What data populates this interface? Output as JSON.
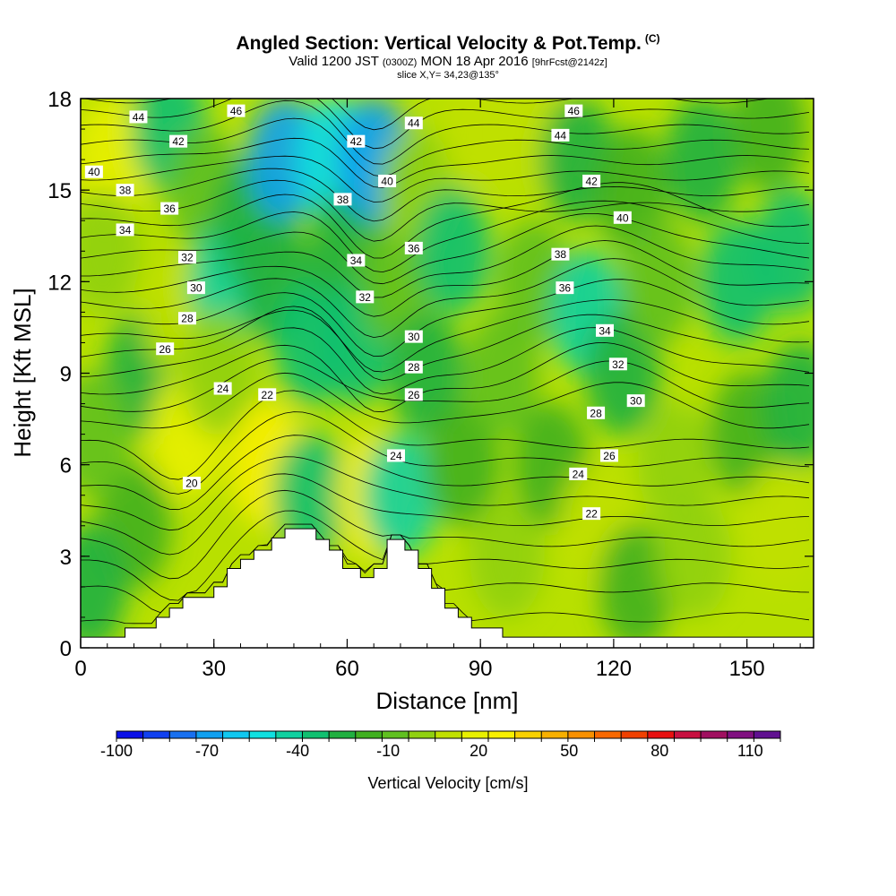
{
  "title": {
    "main": "Angled Section: Vertical Velocity & Pot.Temp.",
    "main_suffix": "(C)",
    "valid_a": "Valid 1200 JST",
    "valid_b": "(0300Z)",
    "valid_c": "MON 18 Apr 2016",
    "valid_d": "[9hrFcst@2142z]",
    "slice": "slice X,Y= 34,23@135°"
  },
  "chart_data": {
    "type": "heatmap",
    "xlabel": "Distance [nm]",
    "ylabel": "Height [Kft MSL]",
    "xlim": [
      0,
      165
    ],
    "ylim": [
      0,
      18
    ],
    "x_ticks": [
      "0",
      "30",
      "60",
      "90",
      "120",
      "150"
    ],
    "y_ticks": [
      "0",
      "3",
      "6",
      "9",
      "12",
      "15",
      "18"
    ],
    "colorbar": {
      "label": "Vertical Velocity [cm/s]",
      "tick_labels": [
        "-100",
        "-70",
        "-40",
        "-10",
        "20",
        "50",
        "80",
        "110"
      ],
      "min": -100,
      "max": 120,
      "step": 10,
      "colors": [
        "#0a10e8",
        "#1040f0",
        "#1870f0",
        "#10a0f0",
        "#10c8f0",
        "#10e0e0",
        "#10d0a0",
        "#10c070",
        "#20b040",
        "#40b020",
        "#60c020",
        "#90d010",
        "#c0e000",
        "#e8f000",
        "#f8f000",
        "#f8d000",
        "#f8b000",
        "#f89000",
        "#f86800",
        "#f04000",
        "#e81010",
        "#c81040",
        "#a01060",
        "#801080",
        "#601090"
      ]
    },
    "terrain": [
      [
        0,
        0.35
      ],
      [
        10,
        0.35
      ],
      [
        10,
        0.65
      ],
      [
        17,
        0.65
      ],
      [
        17,
        1
      ],
      [
        20,
        1
      ],
      [
        20,
        1.3
      ],
      [
        23,
        1.3
      ],
      [
        23,
        1.65
      ],
      [
        30,
        1.65
      ],
      [
        30,
        2
      ],
      [
        33,
        2
      ],
      [
        33,
        2.6
      ],
      [
        36,
        2.6
      ],
      [
        36,
        2.9
      ],
      [
        39,
        2.9
      ],
      [
        39,
        3.2
      ],
      [
        43,
        3.2
      ],
      [
        43,
        3.6
      ],
      [
        46,
        3.6
      ],
      [
        46,
        3.9
      ],
      [
        53,
        3.9
      ],
      [
        53,
        3.55
      ],
      [
        56,
        3.55
      ],
      [
        56,
        3.2
      ],
      [
        59,
        3.2
      ],
      [
        59,
        2.6
      ],
      [
        63,
        2.6
      ],
      [
        63,
        2.3
      ],
      [
        66,
        2.3
      ],
      [
        66,
        2.6
      ],
      [
        69,
        2.6
      ],
      [
        69,
        3.55
      ],
      [
        73,
        3.55
      ],
      [
        73,
        3.2
      ],
      [
        76,
        3.2
      ],
      [
        76,
        2.6
      ],
      [
        79,
        2.6
      ],
      [
        79,
        1.95
      ],
      [
        82,
        1.95
      ],
      [
        82,
        1.3
      ],
      [
        85,
        1.3
      ],
      [
        85,
        1
      ],
      [
        88,
        1
      ],
      [
        88,
        0.65
      ],
      [
        95,
        0.65
      ],
      [
        95,
        0.35
      ],
      [
        165,
        0.35
      ]
    ],
    "velocity_field": [
      {
        "x": 7,
        "y": 16,
        "v": 35
      },
      {
        "x": 5,
        "y": 13,
        "v": 15
      },
      {
        "x": 14,
        "y": 9,
        "v": -15
      },
      {
        "x": 20,
        "y": 17,
        "v": -25
      },
      {
        "x": 22,
        "y": 11,
        "v": 25
      },
      {
        "x": 24,
        "y": 7,
        "v": 35
      },
      {
        "x": 28,
        "y": 15,
        "v": 0
      },
      {
        "x": 33,
        "y": 12,
        "v": -35
      },
      {
        "x": 31,
        "y": 9,
        "v": 15
      },
      {
        "x": 42,
        "y": 6,
        "v": 45
      },
      {
        "x": 38,
        "y": 14,
        "v": -15
      },
      {
        "x": 46,
        "y": 16,
        "v": -65
      },
      {
        "x": 44,
        "y": 12,
        "v": -20
      },
      {
        "x": 52,
        "y": 10,
        "v": -30
      },
      {
        "x": 52,
        "y": 5,
        "v": -25
      },
      {
        "x": 57,
        "y": 16,
        "v": -45
      },
      {
        "x": 60,
        "y": 13,
        "v": -15
      },
      {
        "x": 62,
        "y": 10,
        "v": -30
      },
      {
        "x": 66,
        "y": 16,
        "v": -65
      },
      {
        "x": 66,
        "y": 5,
        "v": 40
      },
      {
        "x": 71,
        "y": 12,
        "v": 5
      },
      {
        "x": 72,
        "y": 5,
        "v": -35
      },
      {
        "x": 76,
        "y": 15,
        "v": 15
      },
      {
        "x": 78,
        "y": 9,
        "v": -20
      },
      {
        "x": 84,
        "y": 13,
        "v": -25
      },
      {
        "x": 86,
        "y": 6,
        "v": -10
      },
      {
        "x": 90,
        "y": 17,
        "v": 20
      },
      {
        "x": 95,
        "y": 9,
        "v": 5
      },
      {
        "x": 96,
        "y": 3,
        "v": 10
      },
      {
        "x": 104,
        "y": 17,
        "v": 20
      },
      {
        "x": 102,
        "y": 12,
        "v": 0
      },
      {
        "x": 106,
        "y": 6,
        "v": -10
      },
      {
        "x": 112,
        "y": 16,
        "v": -15
      },
      {
        "x": 114,
        "y": 11,
        "v": -35
      },
      {
        "x": 116,
        "y": 4,
        "v": 20
      },
      {
        "x": 124,
        "y": 15,
        "v": -5
      },
      {
        "x": 122,
        "y": 9,
        "v": -20
      },
      {
        "x": 125,
        "y": 2,
        "v": -10
      },
      {
        "x": 130,
        "y": 12,
        "v": 0
      },
      {
        "x": 134,
        "y": 6,
        "v": 10
      },
      {
        "x": 140,
        "y": 16,
        "v": -15
      },
      {
        "x": 138,
        "y": 3,
        "v": 15
      },
      {
        "x": 148,
        "y": 12,
        "v": -25
      },
      {
        "x": 150,
        "y": 7,
        "v": -10
      },
      {
        "x": 155,
        "y": 17,
        "v": -5
      },
      {
        "x": 160,
        "y": 13,
        "v": -25
      },
      {
        "x": 157,
        "y": 4,
        "v": 25
      },
      {
        "x": 162,
        "y": 8,
        "v": -15
      },
      {
        "x": 12,
        "y": 4,
        "v": -10
      },
      {
        "x": 2,
        "y": 2,
        "v": -20
      },
      {
        "x": 3,
        "y": 7,
        "v": 5
      }
    ],
    "theta_contours": {
      "levels_min": 18,
      "levels_max": 47,
      "step": 1,
      "labels": [
        {
          "text": "44",
          "x": 13,
          "y": 17.4
        },
        {
          "text": "46",
          "x": 35,
          "y": 17.6
        },
        {
          "text": "40",
          "x": 3,
          "y": 15.6
        },
        {
          "text": "38",
          "x": 10,
          "y": 15.0
        },
        {
          "text": "42",
          "x": 22,
          "y": 16.6
        },
        {
          "text": "36",
          "x": 20,
          "y": 14.4
        },
        {
          "text": "34",
          "x": 10,
          "y": 13.7
        },
        {
          "text": "32",
          "x": 24,
          "y": 12.8
        },
        {
          "text": "30",
          "x": 26,
          "y": 11.8
        },
        {
          "text": "28",
          "x": 24,
          "y": 10.8
        },
        {
          "text": "26",
          "x": 19,
          "y": 9.8
        },
        {
          "text": "24",
          "x": 32,
          "y": 8.5
        },
        {
          "text": "22",
          "x": 42,
          "y": 8.3
        },
        {
          "text": "20",
          "x": 25,
          "y": 5.4
        },
        {
          "text": "42",
          "x": 62,
          "y": 16.6
        },
        {
          "text": "44",
          "x": 75,
          "y": 17.2
        },
        {
          "text": "38",
          "x": 59,
          "y": 14.7
        },
        {
          "text": "40",
          "x": 69,
          "y": 15.3
        },
        {
          "text": "34",
          "x": 62,
          "y": 12.7
        },
        {
          "text": "36",
          "x": 75,
          "y": 13.1
        },
        {
          "text": "32",
          "x": 64,
          "y": 11.5
        },
        {
          "text": "30",
          "x": 75,
          "y": 10.2
        },
        {
          "text": "28",
          "x": 75,
          "y": 9.2
        },
        {
          "text": "26",
          "x": 75,
          "y": 8.3
        },
        {
          "text": "24",
          "x": 71,
          "y": 6.3
        },
        {
          "text": "46",
          "x": 111,
          "y": 17.6
        },
        {
          "text": "44",
          "x": 108,
          "y": 16.8
        },
        {
          "text": "42",
          "x": 115,
          "y": 15.3
        },
        {
          "text": "40",
          "x": 122,
          "y": 14.1
        },
        {
          "text": "38",
          "x": 108,
          "y": 12.9
        },
        {
          "text": "36",
          "x": 109,
          "y": 11.8
        },
        {
          "text": "34",
          "x": 118,
          "y": 10.4
        },
        {
          "text": "32",
          "x": 121,
          "y": 9.3
        },
        {
          "text": "30",
          "x": 125,
          "y": 8.1
        },
        {
          "text": "28",
          "x": 116,
          "y": 7.7
        },
        {
          "text": "26",
          "x": 119,
          "y": 6.3
        },
        {
          "text": "24",
          "x": 112,
          "y": 5.7
        },
        {
          "text": "22",
          "x": 115,
          "y": 4.4
        }
      ]
    }
  }
}
